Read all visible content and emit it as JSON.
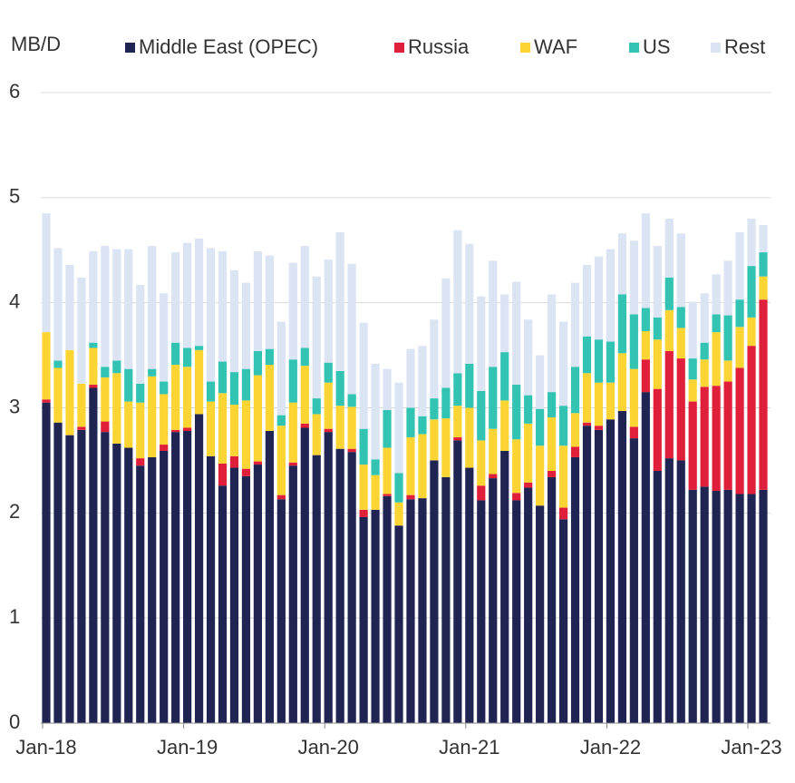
{
  "chart_data": {
    "type": "stacked_bar",
    "y_label": "MB/D",
    "categories": [
      "Jan-18",
      null,
      null,
      null,
      null,
      null,
      null,
      null,
      null,
      null,
      null,
      null,
      "Jan-19",
      null,
      null,
      null,
      null,
      null,
      null,
      null,
      null,
      null,
      null,
      null,
      "Jan-20",
      null,
      null,
      null,
      null,
      null,
      null,
      null,
      null,
      null,
      null,
      null,
      "Jan-21",
      null,
      null,
      null,
      null,
      null,
      null,
      null,
      null,
      null,
      null,
      null,
      "Jan-22",
      null,
      null,
      null,
      null,
      null,
      null,
      null,
      null,
      null,
      null,
      null,
      "Jan-23",
      null
    ],
    "ylim": [
      0,
      6
    ],
    "yticks": [
      0,
      1,
      2,
      3,
      4,
      5,
      6
    ],
    "grid": true,
    "legend": "top",
    "series": [
      {
        "name": "Middle East (OPEC)",
        "color": "#1f2452",
        "values": [
          3.05,
          2.86,
          2.74,
          2.79,
          3.19,
          2.77,
          2.66,
          2.62,
          2.45,
          2.53,
          2.59,
          2.77,
          2.78,
          2.94,
          2.54,
          2.26,
          2.43,
          2.35,
          2.46,
          2.78,
          2.13,
          2.45,
          2.81,
          2.55,
          2.77,
          2.61,
          2.58,
          1.96,
          2.03,
          2.16,
          1.88,
          2.13,
          2.14,
          2.5,
          2.34,
          2.69,
          2.43,
          2.12,
          2.33,
          2.59,
          2.12,
          2.24,
          2.07,
          2.34,
          1.94,
          2.53,
          2.83,
          2.79,
          2.89,
          2.97,
          2.71,
          3.15,
          2.4,
          2.52,
          2.5,
          2.22,
          2.25,
          2.21,
          2.22,
          2.18,
          2.18,
          2.22
        ]
      },
      {
        "name": "Russia",
        "color": "#e0203a",
        "values": [
          0.03,
          0,
          0,
          0.03,
          0.03,
          0.1,
          0,
          0,
          0.07,
          0,
          0.06,
          0.02,
          0.03,
          0,
          0,
          0.21,
          0.11,
          0.07,
          0.03,
          0,
          0.04,
          0.03,
          0.04,
          0,
          0.03,
          0,
          0.03,
          0.07,
          0,
          0.02,
          0,
          0.04,
          0,
          0,
          0,
          0.03,
          0,
          0.14,
          0.04,
          0,
          0.07,
          0.05,
          0,
          0.06,
          0.11,
          0.1,
          0.03,
          0.04,
          0,
          0,
          0.11,
          0.31,
          0.78,
          1.02,
          0.97,
          0.84,
          0.95,
          1.0,
          1.03,
          1.2,
          1.41,
          1.81
        ]
      },
      {
        "name": "WAF",
        "color": "#fcd535",
        "values": [
          0.64,
          0.52,
          0.81,
          0.41,
          0.35,
          0.42,
          0.67,
          0.44,
          0.53,
          0.77,
          0.48,
          0.62,
          0.58,
          0.61,
          0.52,
          0.67,
          0.49,
          0.65,
          0.82,
          0.63,
          0.66,
          0.57,
          0.55,
          0.39,
          0.44,
          0.41,
          0.4,
          0.43,
          0.33,
          0.44,
          0.22,
          0.55,
          0.61,
          0.39,
          0.56,
          0.3,
          0.57,
          0.43,
          0.43,
          0.48,
          0.51,
          0.56,
          0.57,
          0.51,
          0.59,
          0.32,
          0.47,
          0.41,
          0.35,
          0.55,
          0.55,
          0.27,
          0.47,
          0.39,
          0.29,
          0.21,
          0.26,
          0.51,
          0.2,
          0.39,
          0.27,
          0.22
        ]
      },
      {
        "name": "US",
        "color": "#33c3b2",
        "values": [
          0,
          0.07,
          0,
          0,
          0.05,
          0.1,
          0.12,
          0.31,
          0.18,
          0.07,
          0.12,
          0.21,
          0.18,
          0.04,
          0.19,
          0.3,
          0.31,
          0.3,
          0.23,
          0.15,
          0.1,
          0.41,
          0.17,
          0.15,
          0.19,
          0.33,
          0.12,
          0.34,
          0.15,
          0.36,
          0.28,
          0.28,
          0.17,
          0.2,
          0.29,
          0.31,
          0.42,
          0.47,
          0.59,
          0.46,
          0.52,
          0.27,
          0.35,
          0.24,
          0.38,
          0.44,
          0.35,
          0.41,
          0.39,
          0.56,
          0.52,
          0.22,
          0.21,
          0.31,
          0.2,
          0.2,
          0.16,
          0.17,
          0.43,
          0.26,
          0.49,
          0.23
        ]
      },
      {
        "name": "Rest",
        "color": "#dbe4f3",
        "values": [
          1.13,
          1.07,
          0.81,
          1.01,
          0.87,
          1.15,
          1.06,
          1.14,
          0.94,
          1.17,
          0.84,
          0.86,
          1.0,
          1.02,
          1.27,
          1.05,
          0.97,
          0.82,
          0.95,
          0.89,
          0.89,
          0.92,
          0.97,
          1.16,
          0.98,
          1.32,
          1.24,
          1.01,
          0.91,
          0.39,
          0.86,
          0.56,
          0.67,
          0.75,
          1.04,
          1.36,
          1.14,
          0.9,
          1.01,
          0.55,
          0.98,
          0.72,
          0.51,
          0.93,
          0.8,
          0.8,
          0.68,
          0.79,
          0.88,
          0.58,
          0.7,
          0.9,
          0.68,
          0.56,
          0.7,
          0.54,
          0.47,
          0.38,
          0.52,
          0.64,
          0.45,
          0.26
        ]
      }
    ]
  }
}
